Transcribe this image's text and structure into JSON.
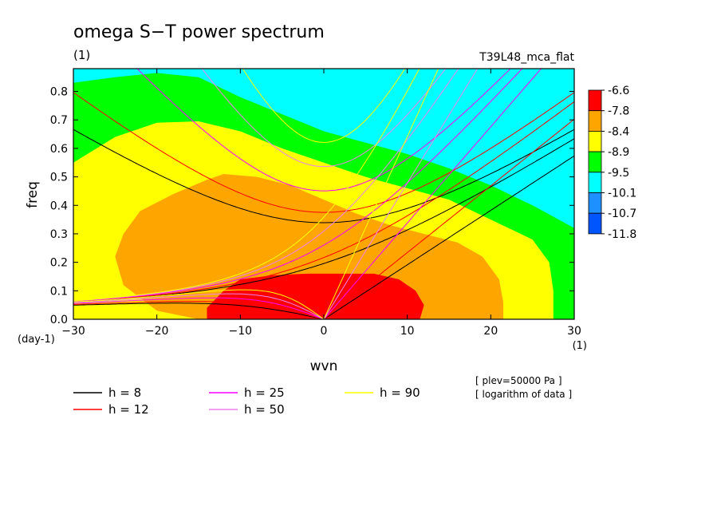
{
  "chart_data": {
    "type": "heatmap",
    "title": "omega S−T power spectrum",
    "subtitle_left": "(1)",
    "subtitle_right": "T39L48_mca_flat",
    "xlabel": "wvn",
    "ylabel": "freq",
    "x_unit_label": "(1)",
    "y_unit_label": "(day-1)",
    "xlim": [
      -30,
      30
    ],
    "ylim": [
      0,
      0.88
    ],
    "x_ticks": [
      {
        "value": -30,
        "label": "−30"
      },
      {
        "value": -20,
        "label": "−20"
      },
      {
        "value": -10,
        "label": "−10"
      },
      {
        "value": 0,
        "label": "0"
      },
      {
        "value": 10,
        "label": "10"
      },
      {
        "value": 20,
        "label": "20"
      },
      {
        "value": 30,
        "label": "30"
      }
    ],
    "y_ticks": [
      {
        "value": 0,
        "label": "0.0"
      },
      {
        "value": 0.1,
        "label": "0.1"
      },
      {
        "value": 0.2,
        "label": "0.2"
      },
      {
        "value": 0.3,
        "label": "0.3"
      },
      {
        "value": 0.4,
        "label": "0.4"
      },
      {
        "value": 0.5,
        "label": "0.5"
      },
      {
        "value": 0.6,
        "label": "0.6"
      },
      {
        "value": 0.7,
        "label": "0.7"
      },
      {
        "value": 0.8,
        "label": "0.8"
      }
    ],
    "colorbar": {
      "labels": [
        "-6.6",
        "-7.8",
        "-8.4",
        "-8.9",
        "-9.5",
        "-10.1",
        "-10.7",
        "-11.8"
      ],
      "colors": [
        "#ff0000",
        "#ffa500",
        "#ffff00",
        "#00ff00",
        "#00ffff",
        "#1e90ff",
        "#0055ff"
      ]
    },
    "contour_bands": [
      {
        "color": "#00ffff",
        "points": [
          [
            -30,
            0.88
          ],
          [
            30,
            0.88
          ],
          [
            30,
            0
          ],
          [
            -30,
            0
          ]
        ]
      },
      {
        "color": "#00ff00",
        "points": [
          [
            -30,
            0.83
          ],
          [
            -25,
            0.85
          ],
          [
            -20,
            0.865
          ],
          [
            -15,
            0.85
          ],
          [
            -10,
            0.78
          ],
          [
            -5,
            0.72
          ],
          [
            0,
            0.66
          ],
          [
            5,
            0.62
          ],
          [
            10,
            0.58
          ],
          [
            15,
            0.53
          ],
          [
            20,
            0.47
          ],
          [
            25,
            0.4
          ],
          [
            30,
            0.32
          ],
          [
            30,
            0
          ],
          [
            -30,
            0
          ]
        ]
      },
      {
        "color": "#ffff00",
        "points": [
          [
            -30,
            0.55
          ],
          [
            -25,
            0.64
          ],
          [
            -20,
            0.69
          ],
          [
            -15,
            0.695
          ],
          [
            -10,
            0.66
          ],
          [
            -5,
            0.6
          ],
          [
            0,
            0.55
          ],
          [
            5,
            0.5
          ],
          [
            10,
            0.46
          ],
          [
            15,
            0.42
          ],
          [
            20,
            0.35
          ],
          [
            25,
            0.28
          ],
          [
            27,
            0.2
          ],
          [
            27.5,
            0.1
          ],
          [
            27.5,
            0
          ],
          [
            -30,
            0
          ]
        ]
      },
      {
        "color": "#ffa500",
        "points": [
          [
            -24,
            0.3
          ],
          [
            -22,
            0.38
          ],
          [
            -18,
            0.44
          ],
          [
            -14,
            0.49
          ],
          [
            -12,
            0.51
          ],
          [
            -8,
            0.5
          ],
          [
            -4,
            0.47
          ],
          [
            0,
            0.42
          ],
          [
            4,
            0.37
          ],
          [
            8,
            0.33
          ],
          [
            12,
            0.3
          ],
          [
            16,
            0.27
          ],
          [
            19,
            0.22
          ],
          [
            21,
            0.14
          ],
          [
            21.5,
            0.06
          ],
          [
            21.5,
            0
          ],
          [
            -15,
            0
          ],
          [
            -20,
            0.03
          ],
          [
            -24,
            0.12
          ],
          [
            -25,
            0.22
          ]
        ]
      },
      {
        "color": "#ff0000",
        "points": [
          [
            -14,
            0.04
          ],
          [
            -12,
            0.1
          ],
          [
            -10,
            0.14
          ],
          [
            -6,
            0.155
          ],
          [
            -2,
            0.16
          ],
          [
            2,
            0.16
          ],
          [
            6,
            0.16
          ],
          [
            9,
            0.14
          ],
          [
            11,
            0.1
          ],
          [
            12,
            0.05
          ],
          [
            11.5,
            0
          ],
          [
            -14,
            0
          ]
        ]
      }
    ],
    "legend": [
      {
        "label": "h =  8",
        "color": "#000000"
      },
      {
        "label": "h = 12",
        "color": "#ff0000"
      },
      {
        "label": "h = 25",
        "color": "#ff00ff"
      },
      {
        "label": "h = 50",
        "color": "#ee82ee"
      },
      {
        "label": "h = 90",
        "color": "#ffff00"
      }
    ],
    "notes": [
      "[ plev=50000 Pa ]",
      "[ logarithm of data ]"
    ]
  }
}
